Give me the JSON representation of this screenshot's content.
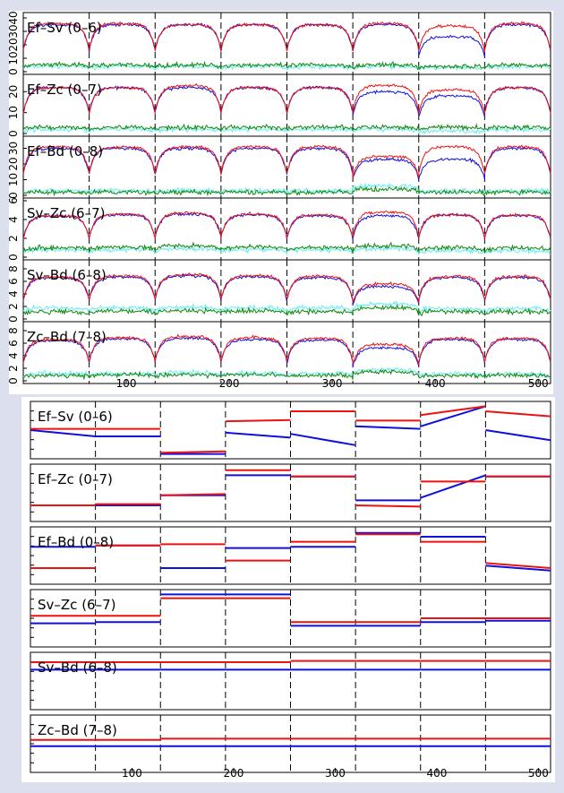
{
  "colors": {
    "page_bg": "#dcdfee",
    "panel_bg": "#ffffff",
    "red": "#ee1111",
    "blue": "#1010dd",
    "green": "#118811",
    "cyan": "#66eeee",
    "frame": "#000000"
  },
  "chart_data": [
    {
      "type": "line",
      "name": "amplitude",
      "xlim": [
        0,
        512
      ],
      "x_ticks": [
        100,
        200,
        300,
        400,
        500
      ],
      "dashed_x": [
        64,
        128,
        192,
        256,
        320,
        384,
        448
      ],
      "panels": [
        {
          "label": "Ef–Sv (0–6)",
          "y_ticks": [
            "0",
            "10",
            "20",
            "30",
            "40"
          ],
          "ylim": [
            0,
            42
          ],
          "levels": {
            "red": [
              36,
              36,
              35,
              35,
              35,
              36,
              34,
              36
            ],
            "blue": [
              35,
              35,
              35,
              35,
              35,
              35,
              26,
              35
            ],
            "green": [
              5,
              5,
              5,
              5,
              5,
              5,
              4,
              5
            ],
            "cyan": [
              4,
              4,
              4,
              4,
              4,
              4,
              3,
              4
            ]
          }
        },
        {
          "label": "Ef–Zc (0–7)",
          "y_ticks": [
            "0",
            "10",
            "20"
          ],
          "ylim": [
            0,
            27
          ],
          "levels": {
            "red": [
              22,
              22,
              23,
              22,
              22,
              23,
              21,
              22
            ],
            "blue": [
              22,
              22,
              22,
              22,
              22,
              20,
              18,
              22
            ],
            "green": [
              3,
              3,
              3,
              3,
              3,
              3,
              3,
              3
            ],
            "cyan": [
              2,
              2,
              2,
              2,
              2,
              2,
              1,
              2
            ]
          }
        },
        {
          "label": "Ef–Bd (0–8)",
          "y_ticks": [
            "0",
            "10",
            "20",
            "30"
          ],
          "ylim": [
            0,
            36
          ],
          "levels": {
            "red": [
              31,
              31,
              31,
              31,
              31,
              25,
              31,
              31
            ],
            "blue": [
              30,
              30,
              30,
              30,
              30,
              23,
              23,
              30
            ],
            "green": [
              2,
              2,
              2,
              2,
              2,
              4,
              2,
              2
            ],
            "cyan": [
              3,
              3,
              3,
              3,
              3,
              6,
              3,
              3
            ]
          }
        },
        {
          "label": "Sv–Zc (6–7)",
          "y_ticks": [
            "0",
            "2",
            "4",
            "6"
          ],
          "ylim": [
            0,
            6
          ],
          "levels": {
            "red": [
              4.4,
              4.6,
              4.7,
              4.6,
              4.5,
              4.8,
              4.5,
              4.5
            ],
            "blue": [
              4.4,
              4.5,
              4.6,
              4.5,
              4.4,
              4.4,
              4.5,
              4.4
            ],
            "green": [
              1.0,
              1.1,
              1.2,
              1.1,
              1.0,
              1.2,
              1.0,
              1.0
            ],
            "cyan": [
              0.8,
              0.8,
              0.9,
              0.8,
              0.8,
              0.9,
              0.7,
              0.7
            ]
          }
        },
        {
          "label": "Sv–Bd (6–8)",
          "y_ticks": [
            "0",
            "2",
            "4",
            "6",
            "8"
          ],
          "ylim": [
            0,
            9
          ],
          "levels": {
            "red": [
              6.7,
              6.9,
              7.1,
              6.9,
              6.8,
              5.6,
              6.8,
              6.8
            ],
            "blue": [
              6.6,
              6.7,
              6.9,
              6.7,
              6.6,
              5.2,
              6.6,
              6.6
            ],
            "green": [
              1.2,
              1.3,
              1.3,
              1.3,
              1.2,
              1.8,
              1.2,
              1.2
            ],
            "cyan": [
              1.8,
              1.8,
              1.9,
              1.8,
              1.8,
              2.4,
              1.7,
              1.7
            ]
          }
        },
        {
          "label": "Zc–Bd (7–8)",
          "y_ticks": [
            "0",
            "2",
            "4",
            "6",
            "8"
          ],
          "ylim": [
            0,
            9
          ],
          "levels": {
            "red": [
              6.6,
              6.9,
              7.1,
              6.9,
              6.8,
              5.8,
              6.8,
              6.8
            ],
            "blue": [
              6.4,
              6.7,
              6.8,
              6.6,
              6.5,
              5.3,
              6.6,
              6.6
            ],
            "green": [
              0.9,
              1.0,
              1.0,
              1.0,
              0.9,
              1.4,
              0.9,
              0.9
            ],
            "cyan": [
              1.2,
              1.2,
              1.3,
              1.2,
              1.2,
              1.8,
              1.1,
              1.1
            ]
          }
        }
      ]
    },
    {
      "type": "line",
      "name": "phase",
      "xlim": [
        0,
        512
      ],
      "x_ticks": [
        100,
        200,
        300,
        400,
        500
      ],
      "dashed_x": [
        64,
        128,
        192,
        256,
        320,
        384,
        448
      ],
      "panels": [
        {
          "label": "Ef–Sv (0–6)",
          "red": [
            [
              0,
              0.05,
              0.05
            ],
            [
              64,
              0.05,
              0.05
            ],
            [
              128,
              -0.9,
              -0.85
            ],
            [
              192,
              0.35,
              0.4
            ],
            [
              256,
              0.75,
              0.75
            ],
            [
              320,
              0.38,
              0.38
            ],
            [
              384,
              0.6,
              0.95
            ],
            [
              448,
              0.75,
              0.55
            ]
          ],
          "blue": [
            [
              0,
              0.0,
              -0.25
            ],
            [
              64,
              -0.25,
              -0.25
            ],
            [
              128,
              -0.95,
              -0.95
            ],
            [
              192,
              -0.1,
              -0.3
            ],
            [
              256,
              -0.15,
              -0.6
            ],
            [
              320,
              0.15,
              0.05
            ],
            [
              384,
              0.15,
              0.95
            ],
            [
              448,
              0.0,
              -0.4
            ]
          ]
        },
        {
          "label": "Ef–Zc (0–7)",
          "red": [
            [
              0,
              -0.5,
              -0.5
            ],
            [
              64,
              -0.45,
              -0.45
            ],
            [
              128,
              -0.1,
              -0.05
            ],
            [
              192,
              0.9,
              0.9
            ],
            [
              256,
              0.65,
              0.65
            ],
            [
              320,
              -0.5,
              -0.55
            ],
            [
              384,
              0.45,
              0.45
            ],
            [
              448,
              0.65,
              0.65
            ]
          ],
          "blue": [
            [
              0,
              -0.5,
              -0.5
            ],
            [
              64,
              -0.5,
              -0.5
            ],
            [
              128,
              -0.1,
              -0.1
            ],
            [
              192,
              0.7,
              0.7
            ],
            [
              256,
              0.65,
              0.65
            ],
            [
              320,
              -0.3,
              -0.3
            ],
            [
              384,
              -0.2,
              0.7
            ],
            [
              448,
              0.65,
              0.65
            ]
          ]
        },
        {
          "label": "Ef–Bd (0–8)",
          "red": [
            [
              0,
              -0.5,
              -0.5
            ],
            [
              64,
              0.4,
              0.4
            ],
            [
              128,
              0.45,
              0.45
            ],
            [
              192,
              -0.2,
              -0.2
            ],
            [
              256,
              0.55,
              0.55
            ],
            [
              320,
              0.85,
              0.85
            ],
            [
              384,
              0.55,
              0.55
            ],
            [
              448,
              -0.3,
              -0.5
            ]
          ],
          "blue": [
            [
              0,
              0.35,
              0.35
            ],
            [
              64,
              0.4,
              0.4
            ],
            [
              128,
              -0.5,
              -0.5
            ],
            [
              192,
              0.3,
              0.3
            ],
            [
              256,
              0.35,
              0.35
            ],
            [
              320,
              0.9,
              0.9
            ],
            [
              384,
              0.75,
              0.75
            ],
            [
              448,
              -0.4,
              -0.6
            ]
          ]
        },
        {
          "label": "Sv–Zc (6–7)",
          "red": [
            [
              0,
              0.1,
              0.1
            ],
            [
              64,
              0.1,
              0.1
            ],
            [
              128,
              0.8,
              0.8
            ],
            [
              192,
              0.8,
              0.8
            ],
            [
              256,
              -0.15,
              -0.15
            ],
            [
              320,
              -0.15,
              -0.15
            ],
            [
              384,
              0.0,
              0.0
            ],
            [
              448,
              0.0,
              0.0
            ]
          ],
          "blue": [
            [
              0,
              -0.2,
              -0.2
            ],
            [
              64,
              -0.15,
              -0.15
            ],
            [
              128,
              0.95,
              0.95
            ],
            [
              192,
              0.95,
              0.95
            ],
            [
              256,
              -0.3,
              -0.3
            ],
            [
              320,
              -0.3,
              -0.3
            ],
            [
              384,
              -0.15,
              -0.15
            ],
            [
              448,
              -0.1,
              -0.1
            ]
          ]
        },
        {
          "label": "Sv–Bd (6–8)",
          "red": [
            [
              0,
              0.75,
              0.75
            ],
            [
              64,
              0.75,
              0.75
            ],
            [
              128,
              0.75,
              0.75
            ],
            [
              192,
              0.75,
              0.75
            ],
            [
              256,
              0.8,
              0.8
            ],
            [
              320,
              0.8,
              0.8
            ],
            [
              384,
              0.8,
              0.8
            ],
            [
              448,
              0.8,
              0.8
            ]
          ],
          "blue": [
            [
              0,
              0.45,
              0.45
            ],
            [
              64,
              0.45,
              0.45
            ],
            [
              128,
              0.45,
              0.45
            ],
            [
              192,
              0.45,
              0.45
            ],
            [
              256,
              0.45,
              0.45
            ],
            [
              320,
              0.45,
              0.45
            ],
            [
              384,
              0.45,
              0.45
            ],
            [
              448,
              0.45,
              0.45
            ]
          ]
        },
        {
          "label": "Zc–Bd (7–8)",
          "red": [
            [
              0,
              0.15,
              0.15
            ],
            [
              64,
              0.15,
              0.15
            ],
            [
              128,
              0.2,
              0.2
            ],
            [
              192,
              0.2,
              0.2
            ],
            [
              256,
              0.2,
              0.2
            ],
            [
              320,
              0.2,
              0.2
            ],
            [
              384,
              0.2,
              0.2
            ],
            [
              448,
              0.2,
              0.2
            ]
          ],
          "blue": [
            [
              0,
              -0.1,
              -0.1
            ],
            [
              64,
              -0.1,
              -0.1
            ],
            [
              128,
              -0.1,
              -0.1
            ],
            [
              192,
              -0.1,
              -0.1
            ],
            [
              256,
              -0.1,
              -0.1
            ],
            [
              320,
              -0.1,
              -0.1
            ],
            [
              384,
              -0.1,
              -0.1
            ],
            [
              448,
              -0.1,
              -0.1
            ]
          ]
        }
      ]
    }
  ]
}
